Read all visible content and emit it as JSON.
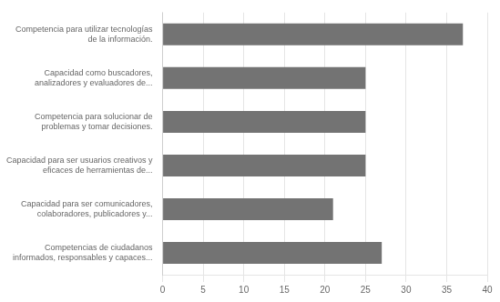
{
  "chart_data": {
    "type": "bar",
    "orientation": "horizontal",
    "categories": [
      "Competencia para utilizar tecnologías\nde la información.",
      "Capacidad como buscadores,\nanalizadores y evaluadores de...",
      "Competencia para solucionar de\nproblemas y tomar decisiones.",
      "Capacidad para ser usuarios creativos y\neficaces de herramientas de...",
      "Capacidad para ser comunicadores,\ncolaboradores, publicadores y...",
      "Competencias de ciudadanos\ninformados, responsables y capaces..."
    ],
    "values": [
      37,
      25,
      25,
      25,
      21,
      27
    ],
    "color": "#737373",
    "xlim": [
      0,
      40
    ],
    "xticks": [
      0,
      5,
      10,
      15,
      20,
      25,
      30,
      35,
      40
    ],
    "grid": true
  }
}
